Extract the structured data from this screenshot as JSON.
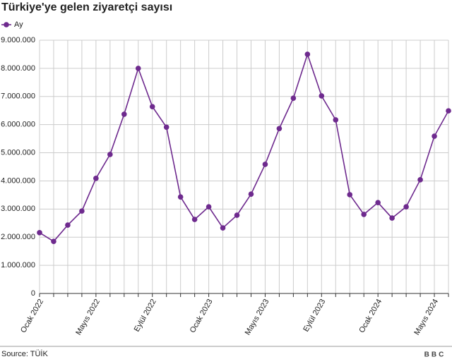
{
  "chart_data": {
    "type": "line",
    "title": "Türkiye'ye gelen ziyaretçi sayısı",
    "source": "Source: TÜİK",
    "logo": "BBC",
    "x": [
      "Ocak 2022",
      null,
      null,
      null,
      "Mayıs 2022",
      null,
      null,
      null,
      "Eylül 2022",
      null,
      null,
      null,
      "Ocak 2023",
      null,
      null,
      null,
      "Mayıs 2023",
      null,
      null,
      null,
      "Eylül 2023",
      null,
      null,
      null,
      "Ocak 2024",
      null,
      null,
      null,
      "Mayıs 2024",
      null
    ],
    "series": [
      {
        "name": "Ay",
        "color": "#6e2a8e",
        "values": [
          2160000,
          1850000,
          2430000,
          2930000,
          4090000,
          4940000,
          6370000,
          8000000,
          6640000,
          5910000,
          3430000,
          2630000,
          3080000,
          2330000,
          2780000,
          3530000,
          4590000,
          5860000,
          6940000,
          8500000,
          7020000,
          6170000,
          3510000,
          2810000,
          3230000,
          2680000,
          3080000,
          4040000,
          5590000,
          6490000
        ]
      }
    ],
    "ylim": [
      0,
      9000000
    ],
    "yticks": [
      0,
      {
        "value": 1000000,
        "label": "1.000.000"
      },
      {
        "value": 2000000,
        "label": "2.000.000"
      },
      {
        "value": 3000000,
        "label": "3.000.000"
      },
      {
        "value": 4000000,
        "label": "4.000.000"
      },
      {
        "value": 5000000,
        "label": "5.000.000"
      },
      {
        "value": 6000000,
        "label": "6.000.000"
      },
      {
        "value": 7000000,
        "label": "7.000.000"
      },
      {
        "value": 8000000,
        "label": "8.000.000"
      },
      {
        "value": 9000000,
        "label": "9.000.000"
      }
    ],
    "grid": true,
    "legend": "top-left"
  }
}
